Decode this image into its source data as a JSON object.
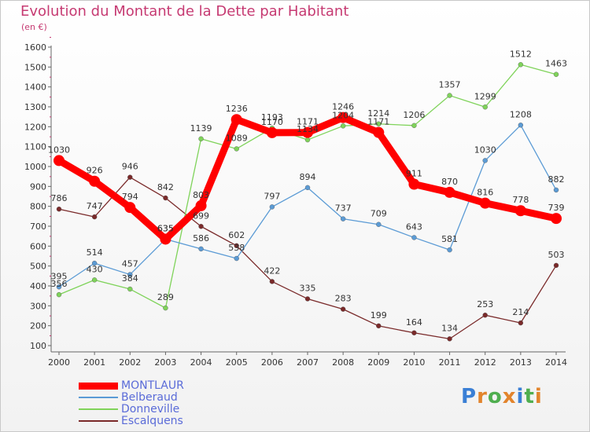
{
  "title": "Evolution du Montant de la Dette par Habitant",
  "unit": "(en €)",
  "logo": {
    "text": "Proxiti",
    "colors": [
      "#3a7fd5",
      "#e2842c",
      "#4fae4f",
      "#e2842c",
      "#3a7fd5",
      "#4fae4f",
      "#e2842c"
    ]
  },
  "chart_data": {
    "type": "line",
    "title": "Evolution du Montant de la Dette par Habitant",
    "ylabel": "(en €)",
    "xlabel": "",
    "x": [
      "2000",
      "2001",
      "2002",
      "2003",
      "2004",
      "2005",
      "2006",
      "2007",
      "2008",
      "2009",
      "2010",
      "2011",
      "2012",
      "2013",
      "2014"
    ],
    "yticks": [
      100,
      200,
      300,
      400,
      500,
      600,
      700,
      800,
      900,
      1000,
      1100,
      1200,
      1300,
      1400,
      1500,
      1600
    ],
    "ylim": [
      100,
      1600
    ],
    "grid": false,
    "legend": "bottom-left",
    "series": [
      {
        "name": "MONTLAUR",
        "color": "#ff0000",
        "values": [
          1030,
          926,
          794,
          635,
          803,
          1236,
          1170,
          1171,
          1246,
          1171,
          911,
          870,
          816,
          778,
          739
        ]
      },
      {
        "name": "Belberaud",
        "color": "#5b9bd5",
        "values": [
          395,
          514,
          457,
          635,
          586,
          538,
          797,
          894,
          737,
          709,
          643,
          581,
          1030,
          1208,
          882
        ]
      },
      {
        "name": "Donneville",
        "color": "#7fd35a",
        "values": [
          356,
          430,
          384,
          289,
          1139,
          1089,
          1193,
          1134,
          1204,
          1214,
          1206,
          1357,
          1299,
          1512,
          1463
        ]
      },
      {
        "name": "Escalquens",
        "color": "#7a2a2a",
        "values": [
          786,
          747,
          946,
          842,
          699,
          602,
          422,
          335,
          283,
          199,
          164,
          134,
          253,
          214,
          503
        ]
      }
    ]
  }
}
